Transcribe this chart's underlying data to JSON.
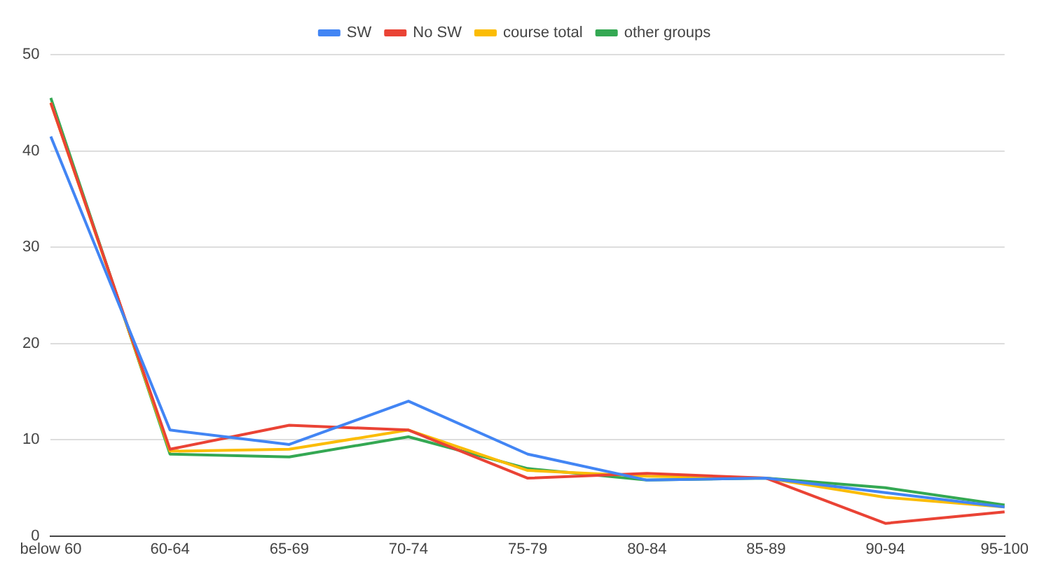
{
  "chart_data": {
    "type": "line",
    "categories": [
      "below 60",
      "60-64",
      "65-69",
      "70-74",
      "75-79",
      "80-84",
      "85-89",
      "90-94",
      "95-100"
    ],
    "series": [
      {
        "name": "SW",
        "color": "#4285f4",
        "values": [
          41.5,
          11,
          9.5,
          14,
          8.5,
          5.8,
          6,
          4.5,
          3
        ]
      },
      {
        "name": "No SW",
        "color": "#ea4335",
        "values": [
          45,
          9,
          11.5,
          11,
          6,
          6.5,
          6,
          1.3,
          2.5
        ]
      },
      {
        "name": "course total",
        "color": "#fbbc04",
        "values": [
          45,
          8.8,
          9,
          11,
          6.8,
          6.2,
          6,
          4,
          3
        ]
      },
      {
        "name": "other groups",
        "color": "#34a853",
        "values": [
          45.5,
          8.5,
          8.2,
          10.3,
          7,
          5.8,
          6,
          5,
          3.2
        ]
      }
    ],
    "ylim": [
      0,
      50
    ],
    "yticks": [
      0,
      10,
      20,
      30,
      40,
      50
    ],
    "grid": "y",
    "legend": "top",
    "marker": "none",
    "line_style": "solid"
  }
}
